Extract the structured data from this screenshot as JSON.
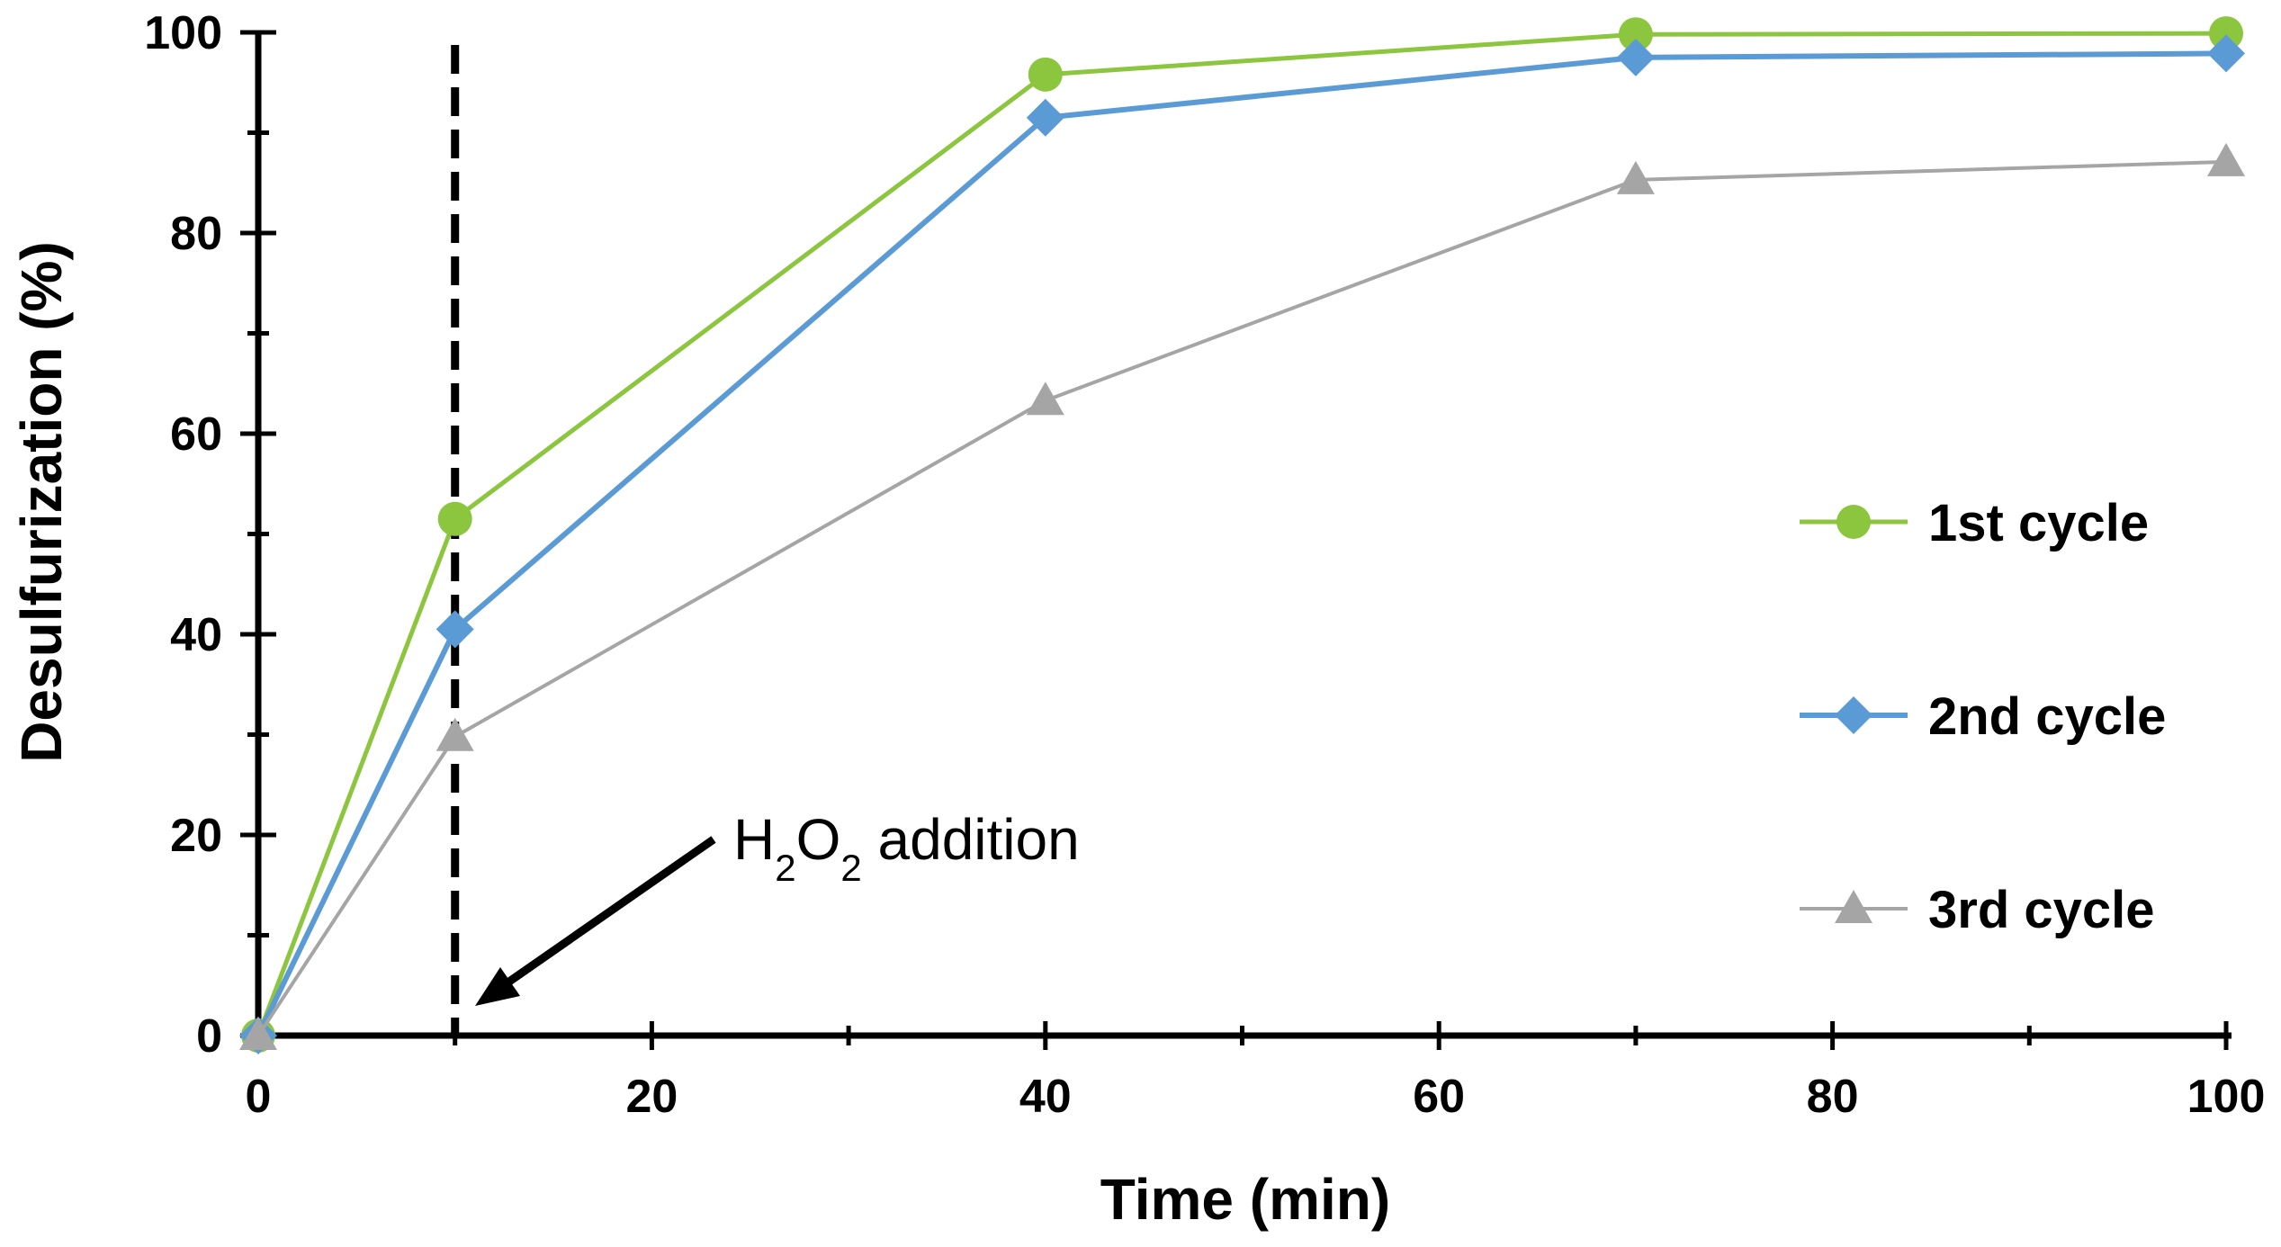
{
  "chart_data": {
    "type": "line",
    "title": "",
    "xlabel": "Time (min)",
    "ylabel": "Desulfurization (%)",
    "xlim": [
      0,
      100
    ],
    "ylim": [
      0,
      100
    ],
    "xticks": [
      0,
      20,
      40,
      60,
      80,
      100
    ],
    "yticks": [
      0,
      20,
      40,
      60,
      80,
      100
    ],
    "grid": false,
    "legend_position": "right",
    "series": [
      {
        "name": "1st cycle",
        "color": "#8CC63F",
        "marker": "circle",
        "x": [
          0,
          10,
          40,
          70,
          100
        ],
        "y": [
          0,
          51.5,
          95.8,
          99.8,
          99.9
        ]
      },
      {
        "name": "2nd cycle",
        "color": "#5B9BD5",
        "marker": "diamond",
        "x": [
          0,
          10,
          40,
          70,
          100
        ],
        "y": [
          0,
          40.5,
          91.5,
          97.5,
          97.9
        ]
      },
      {
        "name": "3rd cycle",
        "color": "#A5A5A5",
        "marker": "triangle",
        "x": [
          0,
          10,
          40,
          70,
          100
        ],
        "y": [
          0,
          29.8,
          63.3,
          85.3,
          87.1
        ]
      }
    ],
    "annotations": [
      {
        "type": "vline",
        "x": 10,
        "style": "dashed",
        "color": "#000000"
      },
      {
        "type": "arrow",
        "text_main": "H",
        "sub1": "2",
        "text_mid": "O",
        "sub2": "2",
        "text_tail": " addition"
      }
    ]
  }
}
